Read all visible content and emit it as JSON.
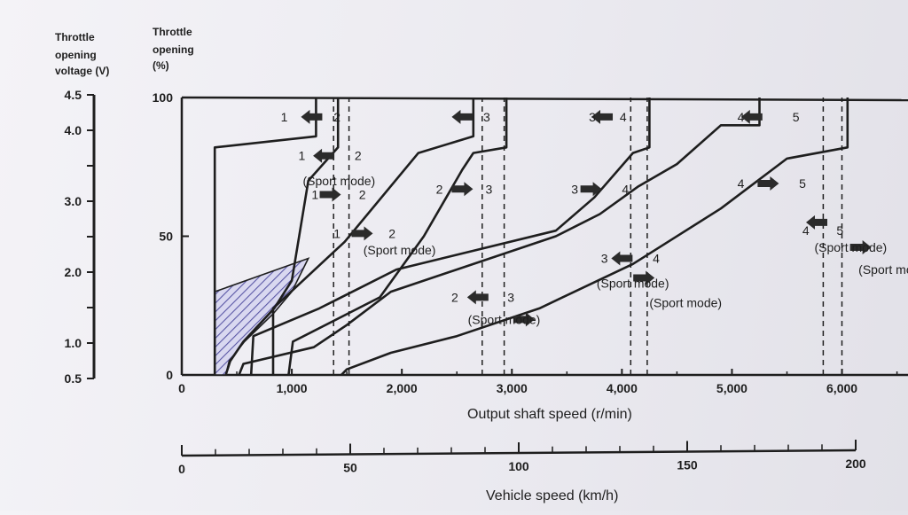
{
  "header": {
    "voltage_title_lines": [
      "Throttle",
      "opening",
      "voltage (V)"
    ],
    "opening_title_lines": [
      "Throttle",
      "opening",
      "(%)"
    ]
  },
  "chart_data": {
    "type": "line",
    "xlabel": "Output shaft speed (r/min)",
    "x2label": "Vehicle speed (km/h)",
    "xlim": [
      0,
      6600
    ],
    "ylim": [
      0,
      100
    ],
    "x_ticks": [
      0,
      1000,
      2000,
      3000,
      4000,
      5000,
      6000
    ],
    "x_tick_labels": [
      "0",
      "1,000",
      "2,000",
      "3,000",
      "4,000",
      "5,000",
      "6,000"
    ],
    "x2lim": [
      0,
      200
    ],
    "x2_ticks_labeled": [
      0,
      50,
      100,
      150,
      200
    ],
    "x2_tick_labels": [
      "0",
      "50",
      "100",
      "150",
      "200"
    ],
    "y_ticks": [
      0,
      50,
      100
    ],
    "y_tick_labels": [
      "0",
      "50",
      "100"
    ],
    "voltage_axis": {
      "range": [
        0.5,
        4.5
      ],
      "tick_values": [
        0.5,
        1.0,
        2.0,
        3.0,
        4.0,
        4.5
      ],
      "tick_labels": [
        "0.5",
        "1.0",
        "2.0",
        "3.0",
        "4.0",
        "4.5"
      ]
    },
    "colors": {
      "line": "#1e1e1e",
      "hatch": "#5b58a6",
      "arrow": "#2b2b2b"
    },
    "hatched_region": [
      [
        300,
        0
      ],
      [
        300,
        30
      ],
      [
        1150,
        42
      ],
      [
        1000,
        30
      ],
      [
        830,
        22
      ],
      [
        570,
        12
      ],
      [
        430,
        5
      ],
      [
        400,
        0
      ]
    ],
    "series": [
      {
        "style": "solid",
        "points": [
          [
            300,
            0
          ],
          [
            300,
            82
          ],
          [
            1220,
            86
          ],
          [
            1220,
            100
          ]
        ]
      },
      {
        "style": "solid",
        "points": [
          [
            400,
            0
          ],
          [
            440,
            5
          ],
          [
            560,
            12
          ],
          [
            840,
            24
          ],
          [
            1000,
            34
          ],
          [
            1150,
            70
          ],
          [
            1420,
            82
          ],
          [
            1420,
            100
          ]
        ]
      },
      {
        "style": "solid",
        "points": [
          [
            830,
            0
          ],
          [
            830,
            24
          ],
          [
            1480,
            48
          ],
          [
            2150,
            80
          ],
          [
            2650,
            86
          ],
          [
            2650,
            100
          ]
        ]
      },
      {
        "style": "solid",
        "points": [
          [
            970,
            0
          ],
          [
            1010,
            12
          ],
          [
            1800,
            28
          ],
          [
            2200,
            50
          ],
          [
            2550,
            74
          ],
          [
            2650,
            80
          ],
          [
            2950,
            82
          ],
          [
            2950,
            100
          ]
        ]
      },
      {
        "style": "solid",
        "points": [
          [
            630,
            0
          ],
          [
            650,
            14
          ],
          [
            1250,
            24
          ],
          [
            1950,
            38
          ],
          [
            3400,
            52
          ],
          [
            3750,
            64
          ],
          [
            4100,
            80
          ],
          [
            4250,
            82
          ],
          [
            4250,
            100
          ]
        ]
      },
      {
        "style": "solid",
        "points": [
          [
            520,
            0
          ],
          [
            560,
            4
          ],
          [
            1200,
            10
          ],
          [
            1500,
            18
          ],
          [
            1900,
            30
          ],
          [
            3400,
            50
          ],
          [
            3800,
            58
          ],
          [
            4150,
            68
          ],
          [
            4500,
            76
          ],
          [
            4900,
            90
          ],
          [
            5250,
            90
          ],
          [
            5250,
            100
          ]
        ]
      },
      {
        "style": "solid",
        "points": [
          [
            1450,
            0
          ],
          [
            1500,
            2
          ],
          [
            1900,
            8
          ],
          [
            2500,
            14
          ],
          [
            3250,
            24
          ],
          [
            4100,
            40
          ],
          [
            4900,
            60
          ],
          [
            5500,
            78
          ],
          [
            6050,
            82
          ],
          [
            6050,
            100
          ]
        ]
      },
      {
        "style": "dashed",
        "points": [
          [
            1380,
            0
          ],
          [
            1380,
            100
          ]
        ]
      },
      {
        "style": "dashed",
        "points": [
          [
            1520,
            0
          ],
          [
            1520,
            100
          ]
        ]
      },
      {
        "style": "dashed",
        "points": [
          [
            2730,
            0
          ],
          [
            2730,
            100
          ]
        ]
      },
      {
        "style": "dashed",
        "points": [
          [
            2930,
            0
          ],
          [
            2930,
            100
          ]
        ]
      },
      {
        "style": "dashed",
        "points": [
          [
            4080,
            0
          ],
          [
            4080,
            100
          ]
        ]
      },
      {
        "style": "dashed",
        "points": [
          [
            4230,
            0
          ],
          [
            4230,
            100
          ]
        ]
      },
      {
        "style": "dashed",
        "points": [
          [
            5830,
            0
          ],
          [
            5830,
            100
          ]
        ]
      },
      {
        "style": "dashed",
        "points": [
          [
            6000,
            0
          ],
          [
            6000,
            100
          ]
        ]
      }
    ],
    "annotations": [
      {
        "text": "1",
        "x": 900,
        "y": 93
      },
      {
        "text": "2",
        "x": 1380,
        "y": 93
      },
      {
        "text": "3",
        "x": 2740,
        "y": 93
      },
      {
        "text": "1",
        "x": 1060,
        "y": 79
      },
      {
        "text": "2",
        "x": 1570,
        "y": 79
      },
      {
        "text": "(Sport mode)",
        "x": 1100,
        "y": 70
      },
      {
        "text": "1",
        "x": 1180,
        "y": 65
      },
      {
        "text": "2",
        "x": 1610,
        "y": 65
      },
      {
        "text": "2",
        "x": 2310,
        "y": 67
      },
      {
        "text": "3",
        "x": 2760,
        "y": 67
      },
      {
        "text": "1",
        "x": 1380,
        "y": 51
      },
      {
        "text": "2",
        "x": 1880,
        "y": 51
      },
      {
        "text": "(Sport mode)",
        "x": 1650,
        "y": 45
      },
      {
        "text": "2",
        "x": 2450,
        "y": 28
      },
      {
        "text": "3",
        "x": 2960,
        "y": 28
      },
      {
        "text": "(Sport mode)",
        "x": 2600,
        "y": 20
      },
      {
        "text": "3",
        "x": 3700,
        "y": 93
      },
      {
        "text": "4",
        "x": 3980,
        "y": 93
      },
      {
        "text": "3",
        "x": 3540,
        "y": 67
      },
      {
        "text": "4",
        "x": 4000,
        "y": 67
      },
      {
        "text": "3",
        "x": 3810,
        "y": 42
      },
      {
        "text": "4",
        "x": 4280,
        "y": 42
      },
      {
        "text": "(Sport mode)",
        "x": 3770,
        "y": 33
      },
      {
        "text": "(Sport mode)",
        "x": 4250,
        "y": 26
      },
      {
        "text": "4",
        "x": 5050,
        "y": 93
      },
      {
        "text": "5",
        "x": 5550,
        "y": 93
      },
      {
        "text": "4",
        "x": 5050,
        "y": 69
      },
      {
        "text": "5",
        "x": 5610,
        "y": 69
      },
      {
        "text": "4",
        "x": 5640,
        "y": 52
      },
      {
        "text": "5",
        "x": 5950,
        "y": 52
      },
      {
        "text": "(Sport mode)",
        "x": 5750,
        "y": 46
      },
      {
        "text": "(Sport mode)",
        "x": 6150,
        "y": 38
      }
    ],
    "arrows": [
      {
        "x": 1180,
        "y": 93,
        "dir": "left"
      },
      {
        "x": 2550,
        "y": 93,
        "dir": "left"
      },
      {
        "x": 3820,
        "y": 93,
        "dir": "left"
      },
      {
        "x": 5180,
        "y": 93,
        "dir": "left"
      },
      {
        "x": 1290,
        "y": 79,
        "dir": "left"
      },
      {
        "x": 1350,
        "y": 65,
        "dir": "right"
      },
      {
        "x": 2550,
        "y": 67,
        "dir": "right"
      },
      {
        "x": 3720,
        "y": 67,
        "dir": "right"
      },
      {
        "x": 5330,
        "y": 69,
        "dir": "right"
      },
      {
        "x": 1640,
        "y": 51,
        "dir": "right"
      },
      {
        "x": 2690,
        "y": 28,
        "dir": "left"
      },
      {
        "x": 3110,
        "y": 20,
        "dir": "right"
      },
      {
        "x": 4000,
        "y": 42,
        "dir": "left"
      },
      {
        "x": 4200,
        "y": 35,
        "dir": "right"
      },
      {
        "x": 5770,
        "y": 55,
        "dir": "left"
      },
      {
        "x": 6170,
        "y": 46,
        "dir": "right"
      }
    ]
  }
}
